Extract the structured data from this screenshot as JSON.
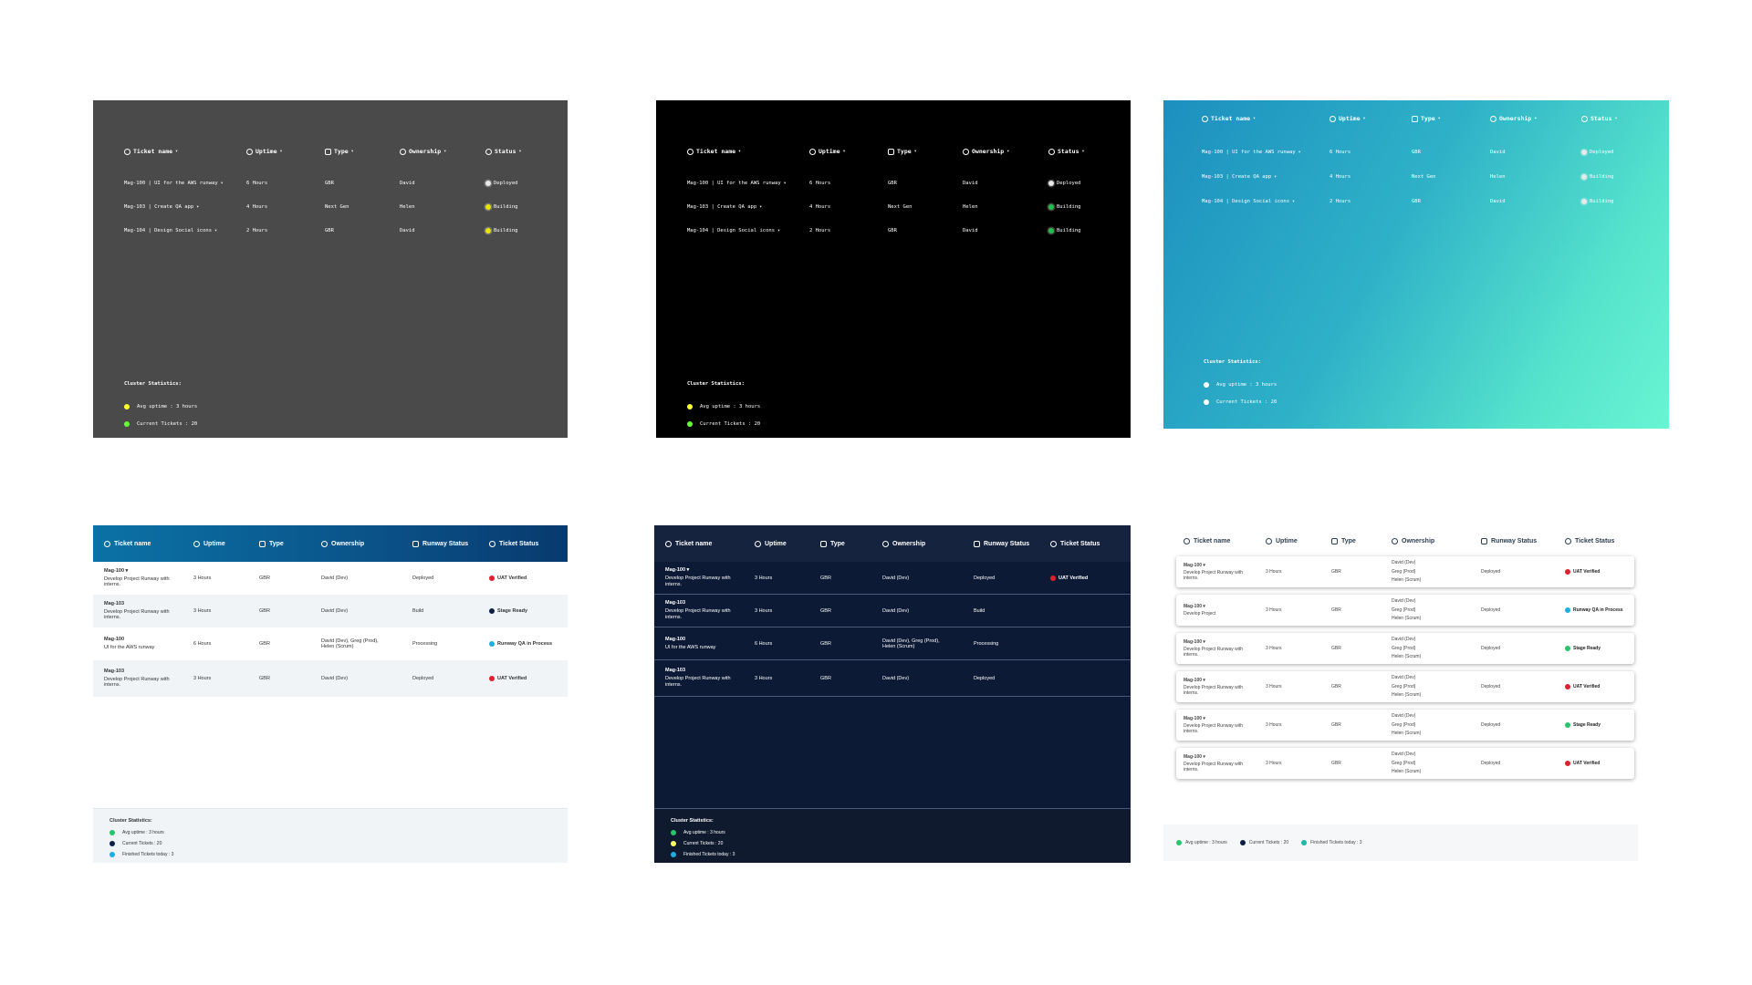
{
  "colors": {
    "gray_bg": "#4a4a4a",
    "black_bg": "#000000",
    "gradient_start": "#1c8fbf",
    "gradient_end": "#68f5d3",
    "navy_bg": "#0c1a36",
    "light_header": "#0a5288",
    "deployed_dot": "#e8e8e8",
    "building_yellow": "#e6e600",
    "building_green": "#1fbf4a",
    "stat_yellow": "#ffff33",
    "stat_green": "#66ff33",
    "uat_red": "#e0202e",
    "stage_navy": "#0e1f45",
    "qa_cyan": "#1faee0",
    "stage_green": "#27c46b"
  },
  "mono_header": {
    "ticket_name": "Ticket name",
    "uptime": "Uptime",
    "type": "Type",
    "ownership": "Ownership",
    "status": "Status"
  },
  "mono_rows": [
    {
      "name": "Mag-100 | UI for the AWS runway",
      "uptime": "6 Hours",
      "type": "GBR",
      "owner": "David",
      "status": "Deployed"
    },
    {
      "name": "Mag-103 | Create QA app",
      "uptime": "4 Hours",
      "type": "Next Gen",
      "owner": "Helen",
      "status": "Building"
    },
    {
      "name": "Mag-104 | Design Social icons",
      "uptime": "2 Hours",
      "type": "GBR",
      "owner": "David",
      "status": "Building"
    }
  ],
  "mono_stats": {
    "title": "Cluster Statistics:",
    "avg_uptime": "Avg uptime : 3 hours",
    "current_tickets": "Current Tickets : 20"
  },
  "table_header": {
    "ticket_name": "Ticket name",
    "uptime": "Uptime",
    "type": "Type",
    "ownership": "Ownership",
    "runway_status": "Runway Status",
    "ticket_status": "Ticket Status"
  },
  "table_rows": [
    {
      "id": "Mag-100",
      "desc": "Develop Project Runway with interns.",
      "uptime": "3 Hours",
      "type": "GBR",
      "owner": "David (Dev)",
      "runway": "Deployed",
      "status": "UAT Verified"
    },
    {
      "id": "Mag-103",
      "desc": "Develop Project Runway with interns.",
      "uptime": "3 Hours",
      "type": "GBR",
      "owner": "David (Dev)",
      "runway": "Build",
      "status": "Stage Ready"
    },
    {
      "id": "Mag-100",
      "desc": "UI for the AWS runway",
      "uptime": "6 Hours",
      "type": "GBR",
      "owner": "David (Dev), Greg (Prod), Helen (Scrum)",
      "runway": "Processing",
      "status": "Runway QA in Process"
    },
    {
      "id": "Mag-103",
      "desc": "Develop Project Runway with interns.",
      "uptime": "3 Hours",
      "type": "GBR",
      "owner": "David (Dev)",
      "runway": "Deployed",
      "status": "UAT Verified"
    }
  ],
  "table_stats": {
    "title": "Cluster Statistics:",
    "avg_uptime": "Avg uptime : 3 hours",
    "current_tickets": "Current Tickets : 20",
    "finished_today": "Finished Tickets today : 3"
  },
  "card_rows": [
    {
      "id": "Mag-100",
      "desc": "Develop Project Runway with interns.",
      "uptime": "3 Hours",
      "type": "GBR",
      "owner1": "David (Dev)",
      "owner2": "Greg (Prod)",
      "owner3": "Helen (Scrum)",
      "runway": "Deployed",
      "status": "UAT Verified"
    },
    {
      "id": "Mag-100",
      "desc": "Develop Project",
      "uptime": "3 Hours",
      "type": "GBR",
      "owner1": "David (Dev)",
      "owner2": "Greg (Prod)",
      "owner3": "Helen (Scrum)",
      "runway": "Deployed",
      "status": "Runway QA in Process"
    },
    {
      "id": "Mag-100",
      "desc": "Develop Project Runway with interns.",
      "uptime": "3 Hours",
      "type": "GBR",
      "owner1": "David (Dev)",
      "owner2": "Greg (Prod)",
      "owner3": "Helen (Scrum)",
      "runway": "Deployed",
      "status": "Stage Ready"
    },
    {
      "id": "Mag-100",
      "desc": "Develop Project Runway with interns.",
      "uptime": "3 Hours",
      "type": "GBR",
      "owner1": "David (Dev)",
      "owner2": "Greg (Prod)",
      "owner3": "Helen (Scrum)",
      "runway": "Deployed",
      "status": "UAT Verified"
    },
    {
      "id": "Mag-100",
      "desc": "Develop Project Runway with interns.",
      "uptime": "3 Hours",
      "type": "GBR",
      "owner1": "David (Dev)",
      "owner2": "Greg (Prod)",
      "owner3": "Helen (Scrum)",
      "runway": "Deployed",
      "status": "Stage Ready"
    },
    {
      "id": "Mag-100",
      "desc": "Develop Project Runway with interns.",
      "uptime": "3 Hours",
      "type": "GBR",
      "owner1": "David (Dev)",
      "owner2": "Greg (Prod)",
      "owner3": "Helen (Scrum)",
      "runway": "Deployed",
      "status": "UAT Verified"
    }
  ],
  "cards_footer": {
    "avg_uptime": "Avg uptime : 3 hours",
    "current_tickets": "Current Tickets : 20",
    "finished_today": "Finished Tickets today : 3"
  }
}
